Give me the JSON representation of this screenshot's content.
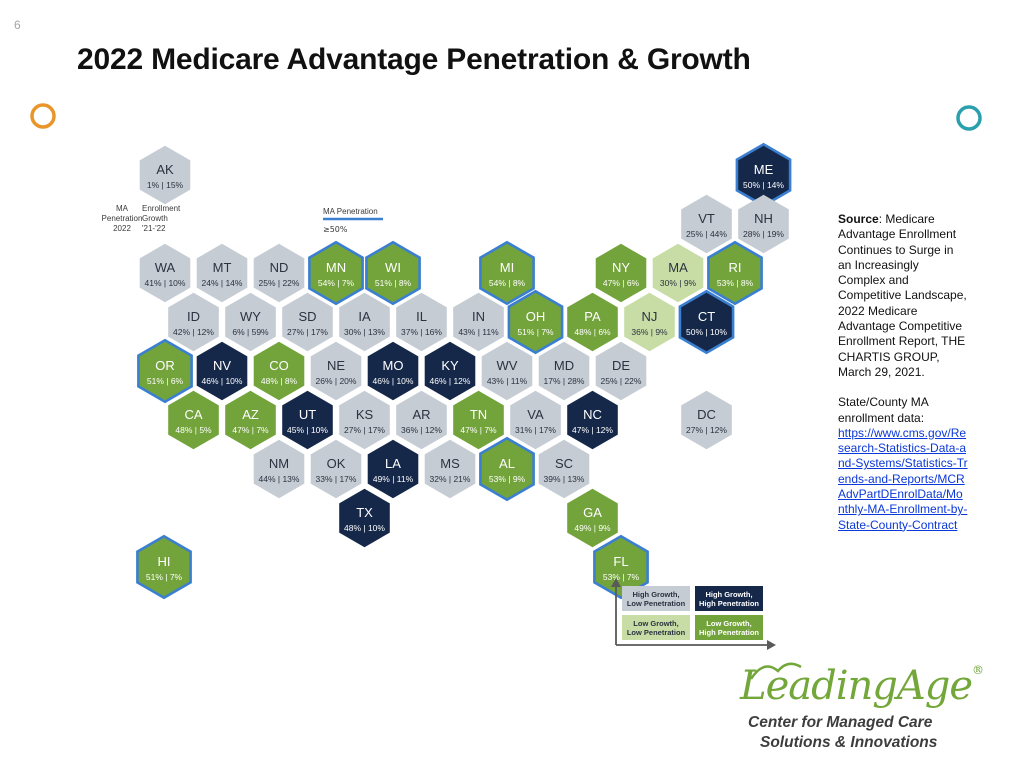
{
  "slide_number": "6",
  "title": "2022 Medicare Advantage Penetration & Growth",
  "colors": {
    "high_growth_low_pen": "#c5ccd3",
    "high_growth_high_pen": "#15284a",
    "low_growth_low_pen": "#c8dda6",
    "low_growth_high_pen": "#73a33b",
    "outline_high_pen": "#3b7fd0",
    "divider_left": "#e8962a",
    "divider_right": "#2aa0ae"
  },
  "map_key": {
    "state": "AK",
    "values": "1% | 15%",
    "left_label": [
      "MA",
      "Penetration",
      "2022"
    ],
    "right_label": [
      "Enrollment",
      "Growth",
      "'21-'22"
    ]
  },
  "outline_legend": {
    "label": "MA Penetration",
    "threshold": "≥50%"
  },
  "quadrant_legend": [
    {
      "lines": [
        "High Growth,",
        "Low Penetration"
      ],
      "category": "hg_lp"
    },
    {
      "lines": [
        "High Growth,",
        "High Penetration"
      ],
      "category": "hg_hp"
    },
    {
      "lines": [
        "Low Growth,",
        "Low Penetration"
      ],
      "category": "lg_lp"
    },
    {
      "lines": [
        "Low Growth,",
        "High Penetration"
      ],
      "category": "lg_hp"
    }
  ],
  "states": [
    {
      "abbr": "AK",
      "penetration": "1%",
      "growth": "15%",
      "category": "hg_lp",
      "outline": false,
      "col": 0,
      "row": 0,
      "dx": 0
    },
    {
      "abbr": "ME",
      "penetration": "50%",
      "growth": "14%",
      "category": "hg_hp",
      "outline": true,
      "col": 10.5,
      "row": 0,
      "dx": 0
    },
    {
      "abbr": "VT",
      "penetration": "25%",
      "growth": "44%",
      "category": "hg_lp",
      "outline": false,
      "col": 9,
      "row": 1,
      "dx": 0
    },
    {
      "abbr": "NH",
      "penetration": "28%",
      "growth": "19%",
      "category": "hg_lp",
      "outline": false,
      "col": 10,
      "row": 1,
      "dx": 0
    },
    {
      "abbr": "WA",
      "penetration": "41%",
      "growth": "10%",
      "category": "hg_lp",
      "outline": false,
      "col": 0,
      "row": 2,
      "dx": 0
    },
    {
      "abbr": "MT",
      "penetration": "24%",
      "growth": "14%",
      "category": "hg_lp",
      "outline": false,
      "col": 1,
      "row": 2,
      "dx": 0
    },
    {
      "abbr": "ND",
      "penetration": "25%",
      "growth": "22%",
      "category": "hg_lp",
      "outline": false,
      "col": 2,
      "row": 2,
      "dx": 0
    },
    {
      "abbr": "MN",
      "penetration": "54%",
      "growth": "7%",
      "category": "lg_hp",
      "outline": true,
      "col": 3,
      "row": 2,
      "dx": 0
    },
    {
      "abbr": "WI",
      "penetration": "51%",
      "growth": "8%",
      "category": "lg_hp",
      "outline": true,
      "col": 4,
      "row": 2,
      "dx": 0
    },
    {
      "abbr": "MI",
      "penetration": "54%",
      "growth": "8%",
      "category": "lg_hp",
      "outline": true,
      "col": 6,
      "row": 2,
      "dx": 0
    },
    {
      "abbr": "NY",
      "penetration": "47%",
      "growth": "6%",
      "category": "lg_hp",
      "outline": false,
      "col": 8,
      "row": 2,
      "dx": 0
    },
    {
      "abbr": "MA",
      "penetration": "30%",
      "growth": "9%",
      "category": "lg_lp",
      "outline": false,
      "col": 9,
      "row": 2,
      "dx": 0
    },
    {
      "abbr": "RI",
      "penetration": "53%",
      "growth": "8%",
      "category": "lg_hp",
      "outline": true,
      "col": 10,
      "row": 2,
      "dx": 0
    },
    {
      "abbr": "ID",
      "penetration": "42%",
      "growth": "12%",
      "category": "hg_lp",
      "outline": false,
      "col": 0,
      "row": 3,
      "dx": 0
    },
    {
      "abbr": "WY",
      "penetration": "6%",
      "growth": "59%",
      "category": "hg_lp",
      "outline": false,
      "col": 1,
      "row": 3,
      "dx": 0
    },
    {
      "abbr": "SD",
      "penetration": "27%",
      "growth": "17%",
      "category": "hg_lp",
      "outline": false,
      "col": 2,
      "row": 3,
      "dx": 0
    },
    {
      "abbr": "IA",
      "penetration": "30%",
      "growth": "13%",
      "category": "hg_lp",
      "outline": false,
      "col": 3,
      "row": 3,
      "dx": 0
    },
    {
      "abbr": "IL",
      "penetration": "37%",
      "growth": "16%",
      "category": "hg_lp",
      "outline": false,
      "col": 4,
      "row": 3,
      "dx": 0
    },
    {
      "abbr": "IN",
      "penetration": "43%",
      "growth": "11%",
      "category": "hg_lp",
      "outline": false,
      "col": 5,
      "row": 3,
      "dx": 0
    },
    {
      "abbr": "OH",
      "penetration": "51%",
      "growth": "7%",
      "category": "lg_hp",
      "outline": true,
      "col": 6,
      "row": 3,
      "dx": 0
    },
    {
      "abbr": "PA",
      "penetration": "48%",
      "growth": "6%",
      "category": "lg_hp",
      "outline": false,
      "col": 7,
      "row": 3,
      "dx": 0
    },
    {
      "abbr": "NJ",
      "penetration": "36%",
      "growth": "9%",
      "category": "lg_lp",
      "outline": false,
      "col": 8,
      "row": 3,
      "dx": 0
    },
    {
      "abbr": "CT",
      "penetration": "50%",
      "growth": "10%",
      "category": "hg_hp",
      "outline": true,
      "col": 9,
      "row": 3,
      "dx": 0
    },
    {
      "abbr": "OR",
      "penetration": "51%",
      "growth": "6%",
      "category": "lg_hp",
      "outline": true,
      "col": 0,
      "row": 4,
      "dx": 0
    },
    {
      "abbr": "NV",
      "penetration": "46%",
      "growth": "10%",
      "category": "hg_hp",
      "outline": false,
      "col": 1,
      "row": 4,
      "dx": 0
    },
    {
      "abbr": "CO",
      "penetration": "48%",
      "growth": "8%",
      "category": "lg_hp",
      "outline": false,
      "col": 2,
      "row": 4,
      "dx": 0
    },
    {
      "abbr": "NE",
      "penetration": "26%",
      "growth": "20%",
      "category": "hg_lp",
      "outline": false,
      "col": 3,
      "row": 4,
      "dx": 0
    },
    {
      "abbr": "MO",
      "penetration": "46%",
      "growth": "10%",
      "category": "hg_hp",
      "outline": false,
      "col": 4,
      "row": 4,
      "dx": 0
    },
    {
      "abbr": "KY",
      "penetration": "46%",
      "growth": "12%",
      "category": "hg_hp",
      "outline": false,
      "col": 5,
      "row": 4,
      "dx": 0
    },
    {
      "abbr": "WV",
      "penetration": "43%",
      "growth": "11%",
      "category": "hg_lp",
      "outline": false,
      "col": 6,
      "row": 4,
      "dx": 0
    },
    {
      "abbr": "MD",
      "penetration": "17%",
      "growth": "28%",
      "category": "hg_lp",
      "outline": false,
      "col": 7,
      "row": 4,
      "dx": 0
    },
    {
      "abbr": "DE",
      "penetration": "25%",
      "growth": "22%",
      "category": "hg_lp",
      "outline": false,
      "col": 8,
      "row": 4,
      "dx": 0
    },
    {
      "abbr": "CA",
      "penetration": "48%",
      "growth": "5%",
      "category": "lg_hp",
      "outline": false,
      "col": 0,
      "row": 5,
      "dx": 0
    },
    {
      "abbr": "AZ",
      "penetration": "47%",
      "growth": "7%",
      "category": "lg_hp",
      "outline": false,
      "col": 1,
      "row": 5,
      "dx": 0
    },
    {
      "abbr": "UT",
      "penetration": "45%",
      "growth": "10%",
      "category": "hg_hp",
      "outline": false,
      "col": 2,
      "row": 5,
      "dx": 0
    },
    {
      "abbr": "KS",
      "penetration": "27%",
      "growth": "17%",
      "category": "hg_lp",
      "outline": false,
      "col": 3,
      "row": 5,
      "dx": 0
    },
    {
      "abbr": "AR",
      "penetration": "36%",
      "growth": "12%",
      "category": "hg_lp",
      "outline": false,
      "col": 4,
      "row": 5,
      "dx": 0
    },
    {
      "abbr": "TN",
      "penetration": "47%",
      "growth": "7%",
      "category": "lg_hp",
      "outline": false,
      "col": 5,
      "row": 5,
      "dx": 0
    },
    {
      "abbr": "VA",
      "penetration": "31%",
      "growth": "17%",
      "category": "hg_lp",
      "outline": false,
      "col": 6,
      "row": 5,
      "dx": 0
    },
    {
      "abbr": "NC",
      "penetration": "47%",
      "growth": "12%",
      "category": "hg_hp",
      "outline": false,
      "col": 7,
      "row": 5,
      "dx": 0
    },
    {
      "abbr": "DC",
      "penetration": "27%",
      "growth": "12%",
      "category": "hg_lp",
      "outline": false,
      "col": 9,
      "row": 5,
      "dx": 0
    },
    {
      "abbr": "NM",
      "penetration": "44%",
      "growth": "13%",
      "category": "hg_lp",
      "outline": false,
      "col": 2,
      "row": 6,
      "dx": 0
    },
    {
      "abbr": "OK",
      "penetration": "33%",
      "growth": "17%",
      "category": "hg_lp",
      "outline": false,
      "col": 3,
      "row": 6,
      "dx": 0
    },
    {
      "abbr": "LA",
      "penetration": "49%",
      "growth": "11%",
      "category": "hg_hp",
      "outline": false,
      "col": 4,
      "row": 6,
      "dx": 0
    },
    {
      "abbr": "MS",
      "penetration": "32%",
      "growth": "21%",
      "category": "hg_lp",
      "outline": false,
      "col": 5,
      "row": 6,
      "dx": 0
    },
    {
      "abbr": "AL",
      "penetration": "53%",
      "growth": "9%",
      "category": "lg_hp",
      "outline": true,
      "col": 6,
      "row": 6,
      "dx": 0
    },
    {
      "abbr": "SC",
      "penetration": "39%",
      "growth": "13%",
      "category": "hg_lp",
      "outline": false,
      "col": 7,
      "row": 6,
      "dx": 0
    },
    {
      "abbr": "TX",
      "penetration": "48%",
      "growth": "10%",
      "category": "hg_hp",
      "outline": false,
      "col": 3,
      "row": 7,
      "dx": 0
    },
    {
      "abbr": "GA",
      "penetration": "49%",
      "growth": "9%",
      "category": "lg_hp",
      "outline": false,
      "col": 7,
      "row": 7,
      "dx": 0
    },
    {
      "abbr": "HI",
      "penetration": "51%",
      "growth": "7%",
      "category": "lg_hp",
      "outline": true,
      "col": 0,
      "row": 8,
      "dx": -1
    },
    {
      "abbr": "FL",
      "penetration": "53%",
      "growth": "7%",
      "category": "lg_hp",
      "outline": true,
      "col": 8,
      "row": 8,
      "dx": 0
    }
  ],
  "source": {
    "label": "Source",
    "text": ": Medicare Advantage Enrollment Continues to Surge in an Increasingly Complex and Competitive Landscape, 2022 Medicare Advantage Competitive Enrollment Report, THE CHARTIS GROUP, March 29, 2021.",
    "data_label": "State/County MA enrollment data:",
    "link": "https://www.cms.gov/Research-Statistics-Data-and-Systems/Statistics-Trends-and-Reports/MCRAdvPartDEnrolData/Monthly-MA-Enrollment-by-State-County-Contract"
  },
  "logo": {
    "name": "LeadingAge",
    "registered": "®",
    "line1": "Center for Managed Care",
    "line2": "Solutions & Innovations"
  }
}
